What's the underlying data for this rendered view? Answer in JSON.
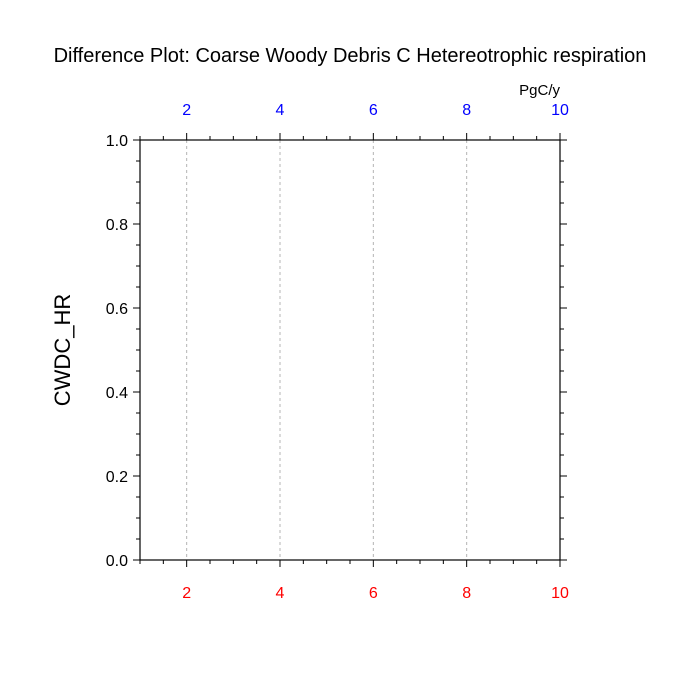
{
  "chart_data": {
    "type": "line",
    "title": "Difference Plot: Coarse Woody Debris C Hetereotrophic respiration",
    "ylabel": "CWDC_HR",
    "units": "PgC/y",
    "xlim": [
      1,
      10
    ],
    "ylim": [
      0,
      1
    ],
    "x_ticks_bottom": [
      2,
      4,
      6,
      8,
      10
    ],
    "x_ticks_top": [
      2,
      4,
      6,
      8,
      10
    ],
    "y_ticks": [
      "0.0",
      "0.2",
      "0.4",
      "0.6",
      "0.8",
      "1.0"
    ],
    "y_tick_values": [
      0,
      0.2,
      0.4,
      0.6,
      0.8,
      1.0
    ],
    "series": [],
    "grid": "vertical-dashed",
    "colors": {
      "bottom_axis": "#ff0000",
      "top_axis": "#0000ff",
      "text": "#000000",
      "grid": "#b4b4b4"
    }
  }
}
